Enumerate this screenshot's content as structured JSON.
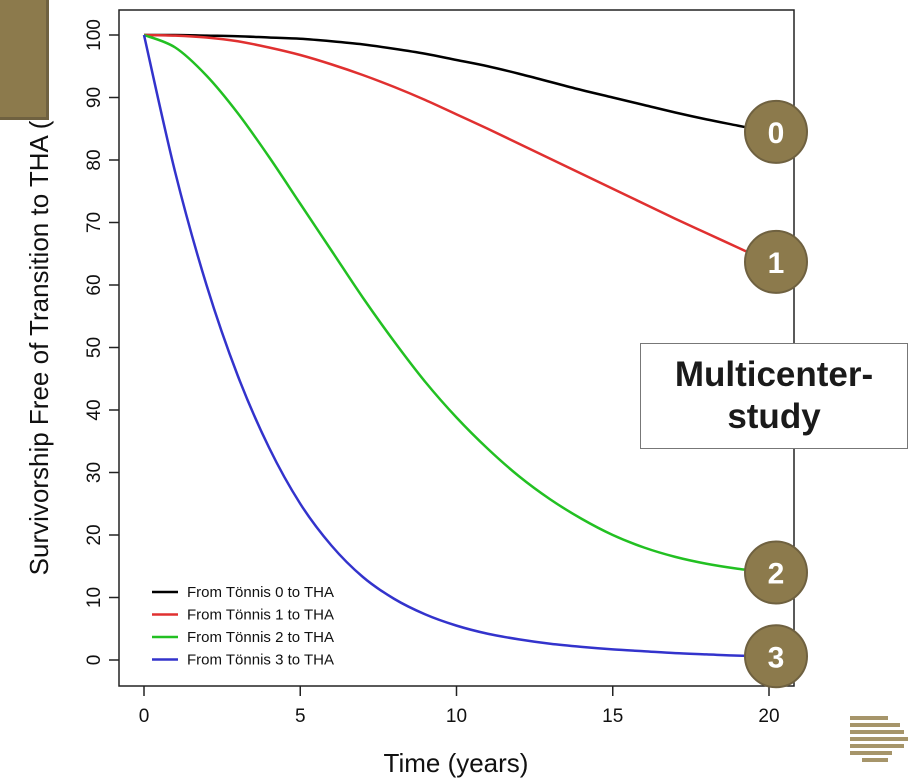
{
  "chart_data": {
    "type": "line",
    "xlabel": "Time (years)",
    "ylabel": "Survivorship Free of Transition to THA (",
    "xlim": [
      0,
      20
    ],
    "ylim": [
      0,
      100
    ],
    "x_ticks": [
      "0",
      "5",
      "10",
      "15",
      "20"
    ],
    "y_ticks": [
      "0",
      "10",
      "20",
      "30",
      "40",
      "50",
      "60",
      "70",
      "80",
      "90",
      "100"
    ],
    "x": [
      0,
      1,
      2,
      3,
      4,
      5,
      6,
      7,
      8,
      9,
      10,
      11,
      12,
      13,
      14,
      15,
      16,
      17,
      18,
      19,
      20
    ],
    "series": [
      {
        "name": "From Tönnis 0 to THA",
        "color": "#000000",
        "values": [
          100,
          100,
          99.9,
          99.8,
          99.6,
          99.4,
          99.0,
          98.5,
          97.8,
          97.0,
          96.0,
          95.0,
          93.8,
          92.5,
          91.2,
          90.0,
          88.8,
          87.6,
          86.5,
          85.5,
          84.5
        ]
      },
      {
        "name": "From Tönnis 1 to THA",
        "color": "#e03030",
        "values": [
          100,
          99.9,
          99.6,
          99.0,
          98.0,
          96.8,
          95.3,
          93.6,
          91.7,
          89.6,
          87.3,
          85.0,
          82.6,
          80.2,
          77.8,
          75.4,
          73.0,
          70.6,
          68.3,
          66.0,
          63.7
        ]
      },
      {
        "name": "From Tönnis 2 to THA",
        "color": "#22c022",
        "values": [
          100,
          98.0,
          93.5,
          87.5,
          80.5,
          73.0,
          65.5,
          58.0,
          51.0,
          44.5,
          38.8,
          33.8,
          29.4,
          25.7,
          22.6,
          20.0,
          18.0,
          16.5,
          15.4,
          14.6,
          14.0
        ]
      },
      {
        "name": "From Tönnis 3 to THA",
        "color": "#3333cc",
        "values": [
          100,
          78.0,
          60.0,
          45.5,
          34.0,
          25.0,
          18.3,
          13.3,
          9.8,
          7.3,
          5.5,
          4.2,
          3.3,
          2.6,
          2.1,
          1.7,
          1.4,
          1.1,
          0.9,
          0.7,
          0.6
        ]
      }
    ],
    "legend_position": "bottom-left",
    "grid": false
  },
  "markers": [
    {
      "label": "0",
      "series": 0
    },
    {
      "label": "1",
      "series": 1
    },
    {
      "label": "2",
      "series": 2
    },
    {
      "label": "3",
      "series": 3
    }
  ],
  "colors": {
    "marker_fill": "#8c7a4c",
    "marker_stroke": "#6f6140",
    "accent": "#8c7a4c"
  },
  "annotation": {
    "lines": [
      "Multicenter-",
      "study"
    ]
  },
  "logo": {
    "icon": "striped-logo-icon"
  }
}
